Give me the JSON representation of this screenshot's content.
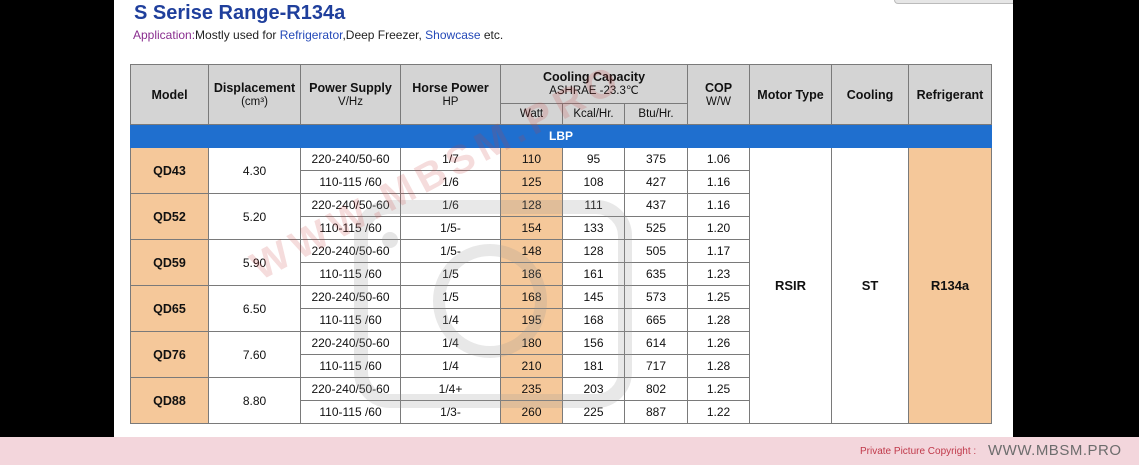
{
  "title": "S Serise Range-R134a",
  "application": {
    "label": "Application:",
    "parts": [
      "Mostly used for ",
      "Refrigerator",
      ",Deep Freezer, ",
      "Showcase",
      " etc."
    ]
  },
  "headers": {
    "model": "Model",
    "displacement": "Displacement",
    "displacement_unit": "(cm³)",
    "power_supply": "Power Supply",
    "power_supply_unit": "V/Hz",
    "horse_power": "Horse Power",
    "horse_power_unit": "HP",
    "cooling_capacity": "Cooling Capacity",
    "cooling_capacity_std": "ASHRAE   -23.3℃",
    "cop": "COP",
    "cop_unit": "W/W",
    "motor_type": "Motor Type",
    "cooling": "Cooling",
    "refrigerant": "Refrigerant",
    "watt": "Watt",
    "kcal": "Kcal/Hr.",
    "btu": "Btu/Hr."
  },
  "band": "LBP",
  "shared": {
    "motor_type": "RSIR",
    "cooling": "ST",
    "refrigerant": "R134a"
  },
  "models": [
    {
      "model": "QD43",
      "displacement": "4.30",
      "rows": [
        {
          "power": "220-240/50-60",
          "hp": "1/7",
          "watt": "110",
          "kcal": "95",
          "btu": "375",
          "cop": "1.06"
        },
        {
          "power": "110-115 /60",
          "hp": "1/6",
          "watt": "125",
          "kcal": "108",
          "btu": "427",
          "cop": "1.16"
        }
      ]
    },
    {
      "model": "QD52",
      "displacement": "5.20",
      "rows": [
        {
          "power": "220-240/50-60",
          "hp": "1/6",
          "watt": "128",
          "kcal": "111",
          "btu": "437",
          "cop": "1.16"
        },
        {
          "power": "110-115 /60",
          "hp": "1/5-",
          "watt": "154",
          "kcal": "133",
          "btu": "525",
          "cop": "1.20"
        }
      ]
    },
    {
      "model": "QD59",
      "displacement": "5.90",
      "rows": [
        {
          "power": "220-240/50-60",
          "hp": "1/5-",
          "watt": "148",
          "kcal": "128",
          "btu": "505",
          "cop": "1.17"
        },
        {
          "power": "110-115 /60",
          "hp": "1/5",
          "watt": "186",
          "kcal": "161",
          "btu": "635",
          "cop": "1.23"
        }
      ]
    },
    {
      "model": "QD65",
      "displacement": "6.50",
      "rows": [
        {
          "power": "220-240/50-60",
          "hp": "1/5",
          "watt": "168",
          "kcal": "145",
          "btu": "573",
          "cop": "1.25"
        },
        {
          "power": "110-115 /60",
          "hp": "1/4",
          "watt": "195",
          "kcal": "168",
          "btu": "665",
          "cop": "1.28"
        }
      ]
    },
    {
      "model": "QD76",
      "displacement": "7.60",
      "rows": [
        {
          "power": "220-240/50-60",
          "hp": "1/4",
          "watt": "180",
          "kcal": "156",
          "btu": "614",
          "cop": "1.26"
        },
        {
          "power": "110-115 /60",
          "hp": "1/4",
          "watt": "210",
          "kcal": "181",
          "btu": "717",
          "cop": "1.28"
        }
      ]
    },
    {
      "model": "QD88",
      "displacement": "8.80",
      "rows": [
        {
          "power": "220-240/50-60",
          "hp": "1/4+",
          "watt": "235",
          "kcal": "203",
          "btu": "802",
          "cop": "1.25"
        },
        {
          "power": "110-115 /60",
          "hp": "1/3-",
          "watt": "260",
          "kcal": "225",
          "btu": "887",
          "cop": "1.22"
        }
      ]
    }
  ],
  "footer": {
    "copyright_label": "Private Picture Copyright :",
    "site": "WWW.MBSM.PRO"
  },
  "watermark_text": "WWW.MBSM.PRO"
}
